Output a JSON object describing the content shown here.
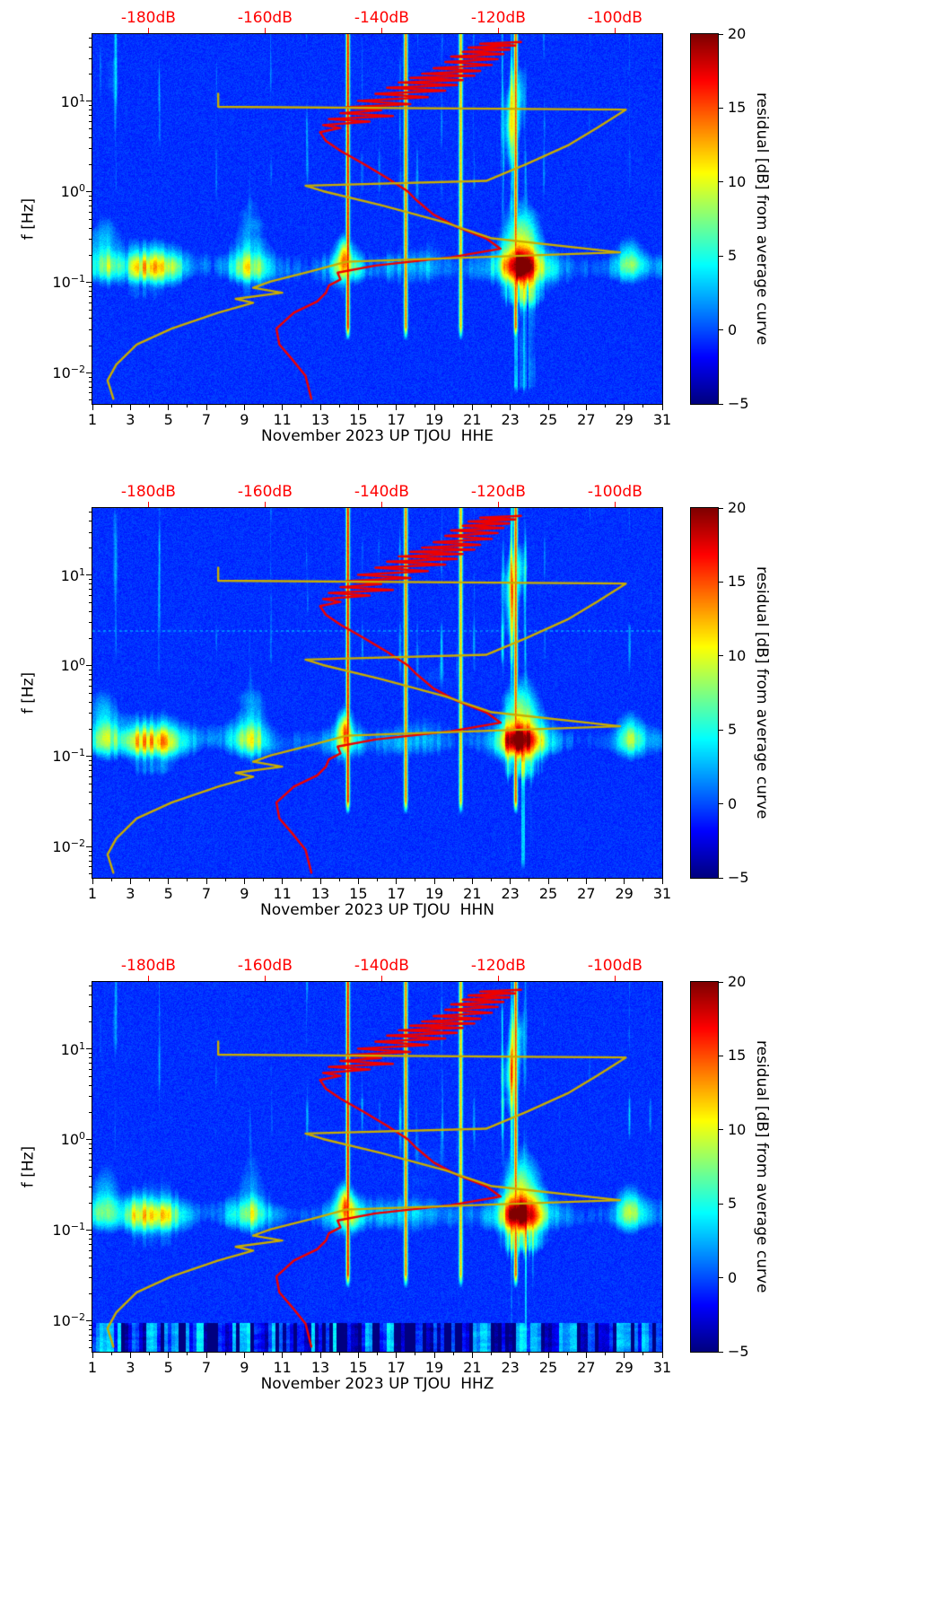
{
  "chart_data": {
    "type": "heatmap",
    "description": "Three stacked seismic noise residual spectrograms (day-of-month vs frequency, jet colormap) for station UP TJOU, November 2023, channels HHE/HHN/HHZ. A red and a yellow PSD curve are overlaid, plotted against the red dB axis along the top.",
    "shared": {
      "ylabel": "f [Hz]",
      "y_axis": {
        "scale": "log",
        "min_hz": 0.0045,
        "max_hz": 55,
        "ticks": [
          {
            "base": "10",
            "exp": "1",
            "f": 10
          },
          {
            "base": "10",
            "exp": "0",
            "f": 1
          },
          {
            "base": "10",
            "exp": "−1",
            "f": 0.1
          },
          {
            "base": "10",
            "exp": "−2",
            "f": 0.01
          }
        ]
      },
      "x_axis": {
        "unit": "day of month",
        "min_day": 1,
        "max_day": 31,
        "tick_labels": [
          "1",
          "3",
          "5",
          "7",
          "9",
          "11",
          "13",
          "15",
          "17",
          "19",
          "21",
          "23",
          "25",
          "27",
          "29",
          "31"
        ]
      },
      "top_axis": {
        "color": "#ff0000",
        "min_db": -189.6,
        "max_db": -91.9,
        "ticks": [
          {
            "label": "-180dB",
            "db": -180
          },
          {
            "label": "-160dB",
            "db": -160
          },
          {
            "label": "-140dB",
            "db": -140
          },
          {
            "label": "-120dB",
            "db": -120
          },
          {
            "label": "-100dB",
            "db": -100
          }
        ]
      },
      "colorbar": {
        "label": "residual [dB] from average curve",
        "colormap": "jet",
        "min": -5,
        "max": 20,
        "ticks": [
          {
            "label": "20",
            "value": 20
          },
          {
            "label": "15",
            "value": 15
          },
          {
            "label": "10",
            "value": 10
          },
          {
            "label": "5",
            "value": 5
          },
          {
            "label": "0",
            "value": 0
          },
          {
            "label": "−5",
            "value": -5
          }
        ]
      },
      "overlay_curves": [
        {
          "name": "psd-curve-red",
          "color": "#ee0000",
          "points_f_hz_db": [
            [
              0.005,
              -152
            ],
            [
              0.009,
              -153
            ],
            [
              0.013,
              -155
            ],
            [
              0.02,
              -157.5
            ],
            [
              0.03,
              -158
            ],
            [
              0.045,
              -155
            ],
            [
              0.06,
              -151
            ],
            [
              0.075,
              -149.5
            ],
            [
              0.09,
              -149
            ],
            [
              0.105,
              -147
            ],
            [
              0.125,
              -147.5
            ],
            [
              0.15,
              -141
            ],
            [
              0.185,
              -128
            ],
            [
              0.23,
              -119.5
            ],
            [
              0.3,
              -122
            ],
            [
              0.4,
              -127
            ],
            [
              0.55,
              -131
            ],
            [
              0.8,
              -134
            ],
            [
              1.0,
              -135.5
            ],
            [
              1.4,
              -139
            ],
            [
              2.0,
              -143
            ],
            [
              2.8,
              -147
            ],
            [
              3.6,
              -149.5
            ],
            [
              4.5,
              -150.5
            ],
            [
              5.0,
              -147
            ],
            [
              5.4,
              -150
            ],
            [
              5.9,
              -142
            ],
            [
              6.3,
              -149
            ],
            [
              6.8,
              -138
            ],
            [
              7.3,
              -147
            ],
            [
              7.9,
              -140
            ],
            [
              8.5,
              -146
            ],
            [
              9.2,
              -135
            ],
            [
              10,
              -144
            ],
            [
              11,
              -132
            ],
            [
              12,
              -141
            ],
            [
              13,
              -129
            ],
            [
              14,
              -139
            ],
            [
              15,
              -127
            ],
            [
              16,
              -137
            ],
            [
              17,
              -126
            ],
            [
              18,
              -135
            ],
            [
              19,
              -124
            ],
            [
              20,
              -133
            ],
            [
              21.5,
              -123
            ],
            [
              23,
              -131
            ],
            [
              25,
              -121
            ],
            [
              27,
              -129
            ],
            [
              29,
              -120
            ],
            [
              31,
              -128
            ],
            [
              33,
              -119
            ],
            [
              35,
              -126
            ],
            [
              37,
              -118
            ],
            [
              39,
              -125
            ],
            [
              41,
              -117
            ],
            [
              43,
              -123
            ],
            [
              45,
              -116
            ]
          ]
        },
        {
          "name": "psd-curve-yellow",
          "color": "#c9ad00",
          "points_f_hz_db": [
            [
              0.005,
              -186
            ],
            [
              0.008,
              -187
            ],
            [
              0.012,
              -185.5
            ],
            [
              0.02,
              -182
            ],
            [
              0.03,
              -176
            ],
            [
              0.045,
              -168
            ],
            [
              0.058,
              -162
            ],
            [
              0.064,
              -165
            ],
            [
              0.075,
              -157
            ],
            [
              0.085,
              -162
            ],
            [
              0.1,
              -159
            ],
            [
              0.13,
              -152
            ],
            [
              0.165,
              -146
            ],
            [
              0.21,
              -99
            ],
            [
              0.3,
              -121
            ],
            [
              0.45,
              -129
            ],
            [
              0.7,
              -140
            ],
            [
              1.0,
              -150
            ],
            [
              1.15,
              -153
            ],
            [
              1.3,
              -122
            ],
            [
              2.0,
              -115
            ],
            [
              3.2,
              -108
            ],
            [
              5.0,
              -103
            ],
            [
              8.0,
              -98
            ],
            [
              8.6,
              -168
            ],
            [
              12.0,
              -168
            ]
          ]
        }
      ]
    },
    "panels": [
      {
        "channel": "HHE",
        "xlabel": "November 2023 UP TJOU  HHE",
        "seed": 11,
        "bottom_band": false,
        "dotted_boundary_hz": null
      },
      {
        "channel": "HHN",
        "xlabel": "November 2023 UP TJOU  HHN",
        "seed": 23,
        "bottom_band": false,
        "dotted_boundary_hz": 2.4
      },
      {
        "channel": "HHZ",
        "xlabel": "November 2023 UP TJOU  HHZ",
        "seed": 37,
        "bottom_band": true,
        "dotted_boundary_hz": null
      }
    ],
    "render_features": {
      "f_log_top": 1.74,
      "f_log_bottom": -2.347,
      "value_range": [
        -5,
        20
      ],
      "day_amp_points": [
        [
          1,
          7
        ],
        [
          1.8,
          9
        ],
        [
          2.6,
          8
        ],
        [
          3.2,
          13
        ],
        [
          4,
          15
        ],
        [
          4.8,
          14
        ],
        [
          5.5,
          9
        ],
        [
          6.5,
          5
        ],
        [
          7.5,
          4
        ],
        [
          8.5,
          8
        ],
        [
          9.2,
          12
        ],
        [
          9.8,
          10
        ],
        [
          10.5,
          5
        ],
        [
          11.5,
          4
        ],
        [
          12.5,
          4
        ],
        [
          13.5,
          6
        ],
        [
          14.2,
          13
        ],
        [
          14.6,
          11
        ],
        [
          15.5,
          5
        ],
        [
          16.5,
          6
        ],
        [
          17.5,
          6
        ],
        [
          18.5,
          6
        ],
        [
          19.5,
          5
        ],
        [
          20.5,
          4
        ],
        [
          21.5,
          5
        ],
        [
          22.3,
          8
        ],
        [
          22.8,
          16
        ],
        [
          23.5,
          20
        ],
        [
          24.2,
          17
        ],
        [
          24.8,
          10
        ],
        [
          25.5,
          6
        ],
        [
          26.5,
          4
        ],
        [
          27.5,
          4
        ],
        [
          28.5,
          5
        ],
        [
          29.5,
          7
        ],
        [
          30.3,
          5
        ],
        [
          31,
          5
        ]
      ],
      "blobs": [
        [
          1.6,
          -0.55,
          0.6,
          0.25,
          4.5
        ],
        [
          9.4,
          -0.35,
          0.6,
          0.3,
          3.5
        ],
        [
          14.3,
          -0.68,
          0.25,
          0.12,
          9
        ],
        [
          18.8,
          -0.2,
          1.5,
          0.35,
          3
        ],
        [
          23.1,
          0.72,
          0.3,
          0.28,
          11
        ],
        [
          23.4,
          1.15,
          0.35,
          0.25,
          7
        ],
        [
          29.3,
          -0.75,
          0.5,
          0.18,
          5
        ],
        [
          23.6,
          -0.5,
          0.7,
          0.3,
          8
        ],
        [
          2.0,
          1.3,
          0.5,
          0.4,
          4
        ]
      ],
      "stripes": [
        [
          1.4,
          4
        ],
        [
          2.2,
          7
        ],
        [
          3.3,
          4
        ],
        [
          4.5,
          8
        ],
        [
          5.2,
          4
        ],
        [
          6.3,
          3
        ],
        [
          7.5,
          7
        ],
        [
          8.4,
          4
        ],
        [
          9.3,
          5
        ],
        [
          10.4,
          7
        ],
        [
          11.2,
          4
        ],
        [
          12.3,
          8
        ],
        [
          13.1,
          4
        ],
        [
          14.5,
          9
        ],
        [
          15.2,
          7
        ],
        [
          16.1,
          6
        ],
        [
          17.2,
          8
        ],
        [
          18.1,
          6
        ],
        [
          19.4,
          8
        ],
        [
          20.2,
          5
        ],
        [
          21.1,
          7
        ],
        [
          22.6,
          10
        ],
        [
          23.1,
          13
        ],
        [
          23.8,
          8
        ],
        [
          24.8,
          8
        ],
        [
          25.6,
          5
        ],
        [
          26.4,
          4
        ],
        [
          27.2,
          7
        ],
        [
          28.3,
          4
        ],
        [
          29.3,
          8
        ],
        [
          30.4,
          6
        ],
        [
          30.9,
          5
        ]
      ],
      "artifact_columns": [
        [
          14.45,
          18
        ],
        [
          17.5,
          15
        ],
        [
          20.4,
          13
        ],
        [
          23.3,
          16
        ]
      ],
      "storm": {
        "day_center": 23.6,
        "day_sigma": 0.6,
        "low_f_amp": 13
      }
    }
  }
}
